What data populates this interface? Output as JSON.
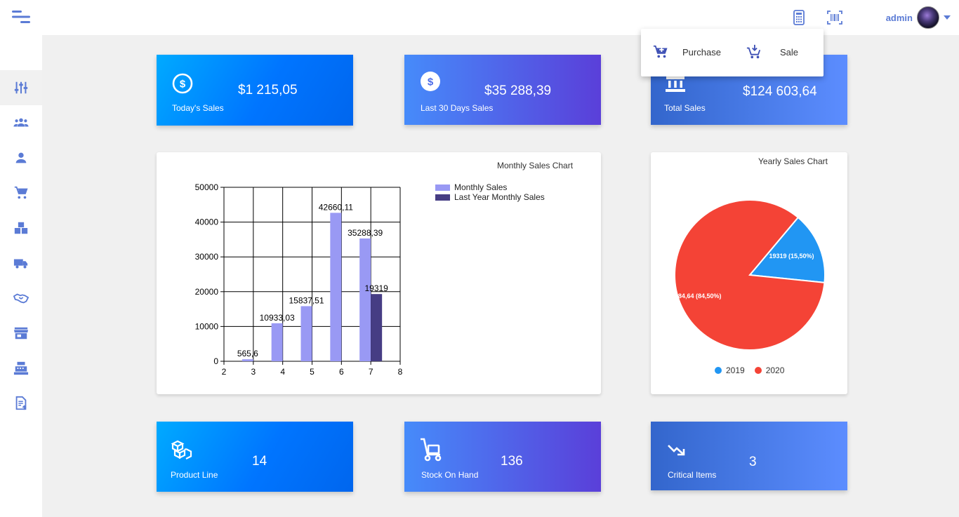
{
  "user": {
    "name": "admin"
  },
  "popup": {
    "purchase_label": "Purchase",
    "sale_label": "Sale"
  },
  "cards": {
    "todays_sales": {
      "label": "Today's Sales",
      "value": "$1 215,05"
    },
    "last_30": {
      "label": "Last 30 Days Sales",
      "value": "$35 288,39"
    },
    "total": {
      "label": "Total Sales",
      "value": "$124 603,64"
    },
    "product_line": {
      "label": "Product Line",
      "value": "14"
    },
    "stock": {
      "label": "Stock On Hand",
      "value": "136"
    },
    "critical": {
      "label": "Critical Items",
      "value": "3"
    }
  },
  "colors": {
    "monthly": "#9999f4",
    "last_year": "#463d84",
    "pie_2019": "#2196f3",
    "pie_2020": "#f44336",
    "icon_blue": "#5b7bd5"
  },
  "chart_data": [
    {
      "type": "bar",
      "title": "Monthly Sales Chart",
      "x": [
        3,
        4,
        5,
        6,
        7
      ],
      "xlim": [
        2,
        8
      ],
      "ylim": [
        0,
        50000
      ],
      "xticks": [
        "2",
        "3",
        "4",
        "5",
        "6",
        "7",
        "8"
      ],
      "yticks": [
        "0",
        "10000",
        "20000",
        "30000",
        "40000",
        "50000"
      ],
      "grid": true,
      "legend": "top-right",
      "series": [
        {
          "name": "Monthly Sales",
          "x": [
            3,
            4,
            5,
            6,
            7
          ],
          "values": [
            565.6,
            10933.03,
            15837.51,
            42660.11,
            35288.39
          ],
          "labels": [
            "565,6",
            "10933,03",
            "15837,51",
            "42660,11",
            "35288,39"
          ]
        },
        {
          "name": "Last Year Monthly Sales",
          "x": [
            7
          ],
          "values": [
            19319
          ],
          "labels": [
            "19319"
          ]
        }
      ]
    },
    {
      "type": "pie",
      "title": "Yearly Sales Chart",
      "legend": "bottom",
      "slices": [
        {
          "name": "2019",
          "value": 19319,
          "label": "19319 (15,50%)"
        },
        {
          "name": "2020",
          "value": 105284.64,
          "label": "105284,64 (84,50%)"
        }
      ]
    }
  ]
}
